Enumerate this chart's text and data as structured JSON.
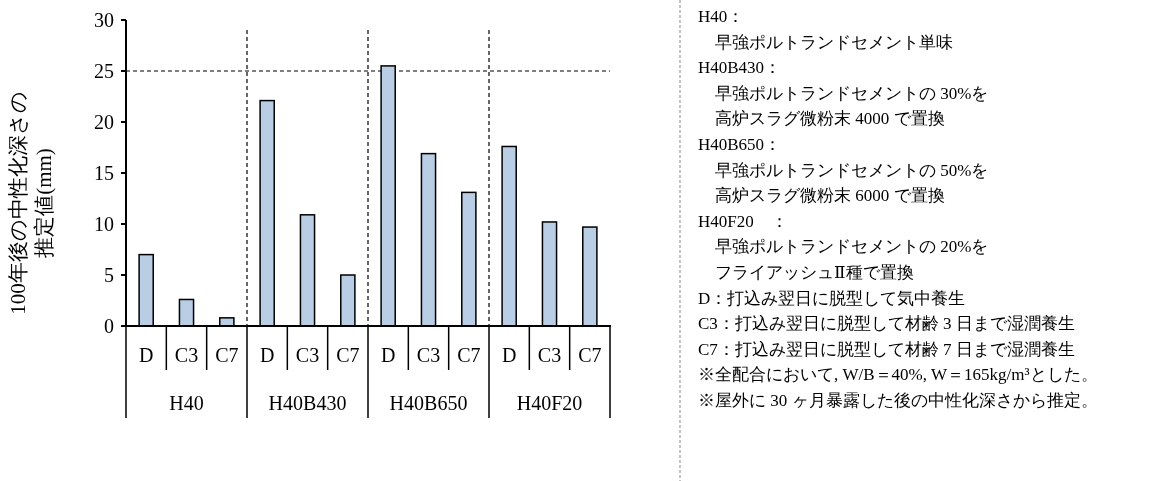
{
  "chart_data": {
    "type": "bar",
    "ylabel": "100年後の中性化深さの推定値(mm)",
    "categories": [
      "D",
      "C3",
      "C7",
      "D",
      "C3",
      "C7",
      "D",
      "C3",
      "C7",
      "D",
      "C3",
      "C7"
    ],
    "values": [
      7.0,
      2.6,
      0.8,
      22.1,
      10.9,
      5.0,
      25.5,
      16.9,
      13.1,
      17.6,
      10.2,
      9.7
    ],
    "color": "#b9cde5",
    "ylim": [
      0,
      30
    ],
    "yticks": [
      0,
      5,
      10,
      15,
      20,
      25,
      30
    ],
    "grid": false,
    "ref_lines": [
      {
        "axis": "y",
        "value": 25,
        "line_style": "dashed",
        "color": "#000000"
      }
    ],
    "annotations": [
      "H40",
      "H40B430",
      "H40B650",
      "H40F20",
      "H40：",
      "　早強ポルトランドセメント単味",
      "H40B430：",
      "　早強ポルトランドセメントの 30%を",
      "　高炉スラグ微粉末 4000 で置換",
      "H40B650：",
      "　早強ポルトランドセメントの 50%を",
      "　高炉スラグ微粉末 6000 で置換",
      "H40F20　：",
      "　早強ポルトランドセメントの 20%を",
      "　フライアッシュⅡ種で置換",
      "D：打込み翌日に脱型して気中養生",
      "C3：打込み翌日に脱型して材齢 3 日まで湿潤養生",
      "C7：打込み翌日に脱型して材齢 7 日まで湿潤養生",
      "※全配合において, W/B＝40%, W＝165kg/m³とした。",
      "※屋外に 30 ヶ月暴露した後の中性化深さから推定。"
    ]
  }
}
